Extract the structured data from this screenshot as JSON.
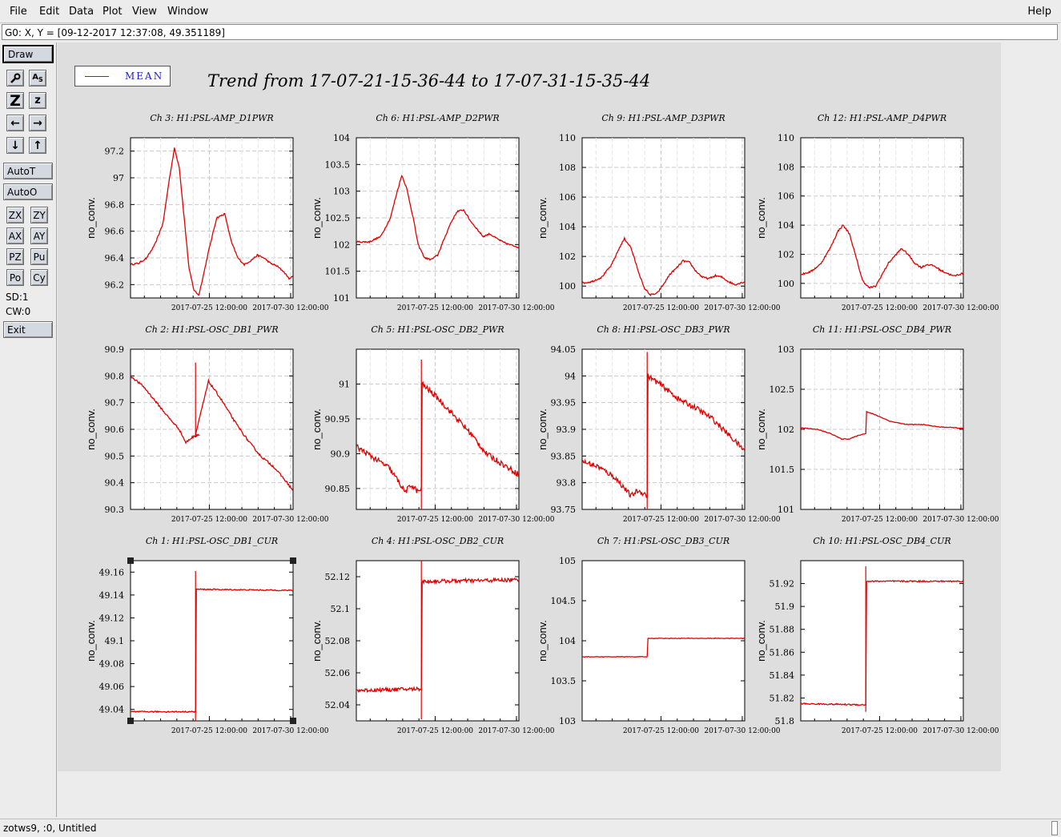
{
  "menubar": {
    "items": [
      "File",
      "Edit",
      "Data",
      "Plot",
      "View",
      "Window"
    ],
    "help": "Help"
  },
  "coord_readout": "G0: X, Y = [09-12-2017 12:37:08, 49.351189]",
  "toolbar": {
    "draw": "Draw",
    "icons": [
      {
        "name": "wrench-icon",
        "glyph": "🔧"
      },
      {
        "name": "text-tool-icon",
        "glyph": "AS"
      },
      {
        "name": "zoom-large-icon",
        "glyph": "Z"
      },
      {
        "name": "zoom-small-icon",
        "glyph": "z"
      },
      {
        "name": "arrow-left-icon",
        "glyph": "←"
      },
      {
        "name": "arrow-right-icon",
        "glyph": "→"
      },
      {
        "name": "arrow-down-icon",
        "glyph": "↓"
      },
      {
        "name": "arrow-up-icon",
        "glyph": "↑"
      }
    ],
    "autot": "AutoT",
    "autoo": "AutoO",
    "pairs": [
      [
        "ZX",
        "ZY"
      ],
      [
        "AX",
        "AY"
      ],
      [
        "PZ",
        "Pu"
      ],
      [
        "Po",
        "Cy"
      ]
    ],
    "sd": "SD:1",
    "cw": "CW:0",
    "exit": "Exit"
  },
  "legend": {
    "label": "MEAN",
    "color": "#e00000"
  },
  "title": "Trend from 17-07-21-15-36-44 to 17-07-31-15-35-44",
  "status": "zotws9, :0, Untitled",
  "chart_data": [
    {
      "type": "line",
      "title": "Ch 3: H1:PSL-AMP_D1PWR",
      "ylabel": "no_conv.",
      "yticks": [
        "96.2",
        "96.4",
        "96.6",
        "96.8",
        "97",
        "97.2"
      ],
      "ytick_values": [
        96.2,
        96.4,
        96.6,
        96.8,
        97,
        97.2
      ],
      "ylim": [
        96.1,
        97.3
      ],
      "xticks": [
        "2017-07-25 12:00:00",
        "2017-07-30 12:00:00"
      ],
      "xlim": [
        0,
        10
      ],
      "xtick_values": [
        4.85,
        9.85
      ],
      "grid": true,
      "series": [
        {
          "x": [
            0,
            0.5,
            1,
            1.5,
            2,
            2.4,
            2.7,
            3.0,
            3.3,
            3.6,
            3.9,
            4.2,
            4.5,
            4.8,
            5.0,
            5.3,
            5.8,
            6.2,
            6.6,
            7.0,
            7.4,
            7.8,
            8.2,
            8.6,
            9.0,
            9.4,
            9.8,
            10
          ],
          "y": [
            96.35,
            96.36,
            96.4,
            96.5,
            96.66,
            97.0,
            97.22,
            97.08,
            96.7,
            96.32,
            96.16,
            96.12,
            96.28,
            96.45,
            96.55,
            96.7,
            96.73,
            96.52,
            96.4,
            96.35,
            96.38,
            96.42,
            96.4,
            96.36,
            96.34,
            96.3,
            96.24,
            96.27
          ],
          "noise": 0.006
        }
      ]
    },
    {
      "type": "line",
      "title": "Ch 6: H1:PSL-AMP_D2PWR",
      "ylabel": "no_conv.",
      "yticks": [
        "101",
        "101.5",
        "102",
        "102.5",
        "103",
        "103.5",
        "104"
      ],
      "ytick_values": [
        101,
        101.5,
        102,
        102.5,
        103,
        103.5,
        104
      ],
      "ylim": [
        101,
        104
      ],
      "xticks": [
        "2017-07-25 12:00:00",
        "2017-07-30 12:00:00"
      ],
      "xlim": [
        0,
        10
      ],
      "xtick_values": [
        4.85,
        9.85
      ],
      "grid": true,
      "series": [
        {
          "x": [
            0,
            0.8,
            1.5,
            2.1,
            2.5,
            2.8,
            3.1,
            3.5,
            3.8,
            4.2,
            4.6,
            5.0,
            5.4,
            5.8,
            6.2,
            6.6,
            7.0,
            7.4,
            7.8,
            8.2,
            8.6,
            9.0,
            9.4,
            10
          ],
          "y": [
            102.05,
            102.05,
            102.15,
            102.5,
            102.98,
            103.3,
            103.05,
            102.5,
            102.0,
            101.75,
            101.72,
            101.8,
            102.1,
            102.4,
            102.62,
            102.65,
            102.45,
            102.3,
            102.15,
            102.2,
            102.12,
            102.05,
            102.0,
            101.95
          ],
          "noise": 0.015
        }
      ]
    },
    {
      "type": "line",
      "title": "Ch 9: H1:PSL-AMP_D3PWR",
      "ylabel": "no_conv.",
      "yticks": [
        "100",
        "102",
        "104",
        "106",
        "108",
        "110"
      ],
      "ytick_values": [
        100,
        102,
        104,
        106,
        108,
        110
      ],
      "ylim": [
        99.2,
        110
      ],
      "xticks": [
        "2017-07-25 12:00:00",
        "2017-07-30 12:00:00"
      ],
      "xlim": [
        0,
        10
      ],
      "xtick_values": [
        4.85,
        9.85
      ],
      "grid": true,
      "series": [
        {
          "x": [
            0,
            0.6,
            1.2,
            1.8,
            2.3,
            2.6,
            3.0,
            3.4,
            3.8,
            4.2,
            4.6,
            5.0,
            5.4,
            5.8,
            6.2,
            6.6,
            7.0,
            7.4,
            7.8,
            8.2,
            8.6,
            9.0,
            9.4,
            10
          ],
          "y": [
            100.2,
            100.3,
            100.6,
            101.4,
            102.6,
            103.2,
            102.6,
            101.2,
            99.9,
            99.4,
            99.5,
            100.1,
            100.8,
            101.2,
            101.7,
            101.6,
            101.0,
            100.6,
            100.5,
            100.7,
            100.6,
            100.3,
            100.1,
            100.3
          ],
          "noise": 0.06
        }
      ]
    },
    {
      "type": "line",
      "title": "Ch 12: H1:PSL-AMP_D4PWR",
      "ylabel": "no_conv.",
      "yticks": [
        "100",
        "102",
        "104",
        "106",
        "108",
        "110"
      ],
      "ytick_values": [
        100,
        102,
        104,
        106,
        108,
        110
      ],
      "ylim": [
        99.0,
        110
      ],
      "xticks": [
        "2017-07-25 12:00:00",
        "2017-07-30 12:00:00"
      ],
      "xlim": [
        0,
        10
      ],
      "xtick_values": [
        4.85,
        9.85
      ],
      "grid": true,
      "series": [
        {
          "x": [
            0,
            0.6,
            1.2,
            1.8,
            2.3,
            2.6,
            3.0,
            3.4,
            3.8,
            4.2,
            4.6,
            5.0,
            5.4,
            5.8,
            6.2,
            6.6,
            7.0,
            7.4,
            7.8,
            8.2,
            8.6,
            9.0,
            9.4,
            10
          ],
          "y": [
            100.6,
            100.8,
            101.3,
            102.4,
            103.6,
            104.0,
            103.4,
            101.8,
            100.2,
            99.7,
            99.8,
            100.6,
            101.4,
            101.9,
            102.4,
            102.0,
            101.4,
            101.1,
            101.3,
            101.2,
            100.9,
            100.7,
            100.5,
            100.7
          ],
          "noise": 0.06
        }
      ]
    },
    {
      "type": "line",
      "title": "Ch 2: H1:PSL-OSC_DB1_PWR",
      "ylabel": "no_conv.",
      "yticks": [
        "90.3",
        "90.4",
        "90.5",
        "90.6",
        "90.7",
        "90.8",
        "90.9"
      ],
      "ytick_values": [
        90.3,
        90.4,
        90.5,
        90.6,
        90.7,
        90.8,
        90.9
      ],
      "ylim": [
        90.3,
        90.9
      ],
      "xticks": [
        "2017-07-25 12:00:00",
        "2017-07-30 12:00:00"
      ],
      "xlim": [
        0,
        10
      ],
      "xtick_values": [
        4.85,
        9.85
      ],
      "grid": true,
      "series": [
        {
          "x": [
            0,
            0.8,
            1.6,
            2.4,
            3.0,
            3.4,
            3.8,
            4.2,
            4.0,
            4.0,
            4.0,
            4.8,
            5.6,
            6.4,
            7.2,
            8.0,
            8.8,
            9.5,
            10
          ],
          "y": [
            90.8,
            90.76,
            90.7,
            90.64,
            90.6,
            90.55,
            90.57,
            90.58,
            90.58,
            90.58,
            90.58,
            90.78,
            90.71,
            90.63,
            90.56,
            90.5,
            90.46,
            90.41,
            90.37
          ],
          "noise": 0.004,
          "jump": {
            "at": 4.0,
            "from": 90.57,
            "to": 90.85
          }
        }
      ]
    },
    {
      "type": "line",
      "title": "Ch 5: H1:PSL-OSC_DB2_PWR",
      "ylabel": "no_conv.",
      "yticks": [
        "90.85",
        "90.9",
        "90.95",
        "91"
      ],
      "ytick_values": [
        90.85,
        90.9,
        90.95,
        91
      ],
      "ylim": [
        90.82,
        91.05
      ],
      "xticks": [
        "2017-07-25 12:00:00",
        "2017-07-30 12:00:00"
      ],
      "xlim": [
        0,
        10
      ],
      "xtick_values": [
        4.85,
        9.85
      ],
      "grid": true,
      "series": [
        {
          "x": [
            0,
            1,
            2,
            2.6,
            3.0,
            3.4,
            3.8,
            4.0,
            4.05,
            5.0,
            6.0,
            7.0,
            8.0,
            9.0,
            10
          ],
          "y": [
            90.91,
            90.895,
            90.88,
            90.86,
            90.845,
            90.855,
            90.845,
            90.85,
            91.0,
            90.98,
            90.955,
            90.93,
            90.9,
            90.885,
            90.87
          ],
          "noise": 0.004,
          "jump": {
            "at": 4.0,
            "from": 90.82,
            "to": 91.035
          }
        }
      ]
    },
    {
      "type": "line",
      "title": "Ch 8: H1:PSL-OSC_DB3_PWR",
      "ylabel": "no_conv.",
      "yticks": [
        "93.75",
        "93.8",
        "93.85",
        "93.9",
        "93.95",
        "94",
        "94.05"
      ],
      "ytick_values": [
        93.75,
        93.8,
        93.85,
        93.9,
        93.95,
        94,
        94.05
      ],
      "ylim": [
        93.75,
        94.05
      ],
      "xticks": [
        "2017-07-25 12:00:00",
        "2017-07-30 12:00:00"
      ],
      "xlim": [
        0,
        10
      ],
      "xtick_values": [
        4.85,
        9.85
      ],
      "grid": true,
      "series": [
        {
          "x": [
            0,
            1,
            2,
            2.6,
            3.0,
            3.4,
            3.8,
            4.0,
            4.05,
            5.0,
            6.0,
            7.0,
            8.0,
            9.0,
            10
          ],
          "y": [
            93.84,
            93.83,
            93.81,
            93.79,
            93.775,
            93.785,
            93.78,
            93.775,
            94.0,
            93.98,
            93.955,
            93.94,
            93.92,
            93.89,
            93.86
          ],
          "noise": 0.005,
          "jump": {
            "at": 4.0,
            "from": 93.75,
            "to": 94.045
          }
        }
      ]
    },
    {
      "type": "line",
      "title": "Ch 11: H1:PSL-OSC_DB4_PWR",
      "ylabel": "no_conv.",
      "yticks": [
        "101",
        "101.5",
        "102",
        "102.5",
        "103"
      ],
      "ytick_values": [
        101,
        101.5,
        102,
        102.5,
        103
      ],
      "ylim": [
        101,
        103
      ],
      "xticks": [
        "2017-07-25 12:00:00",
        "2017-07-30 12:00:00"
      ],
      "xlim": [
        0,
        10
      ],
      "xtick_values": [
        4.85,
        9.85
      ],
      "grid": true,
      "series": [
        {
          "x": [
            0,
            1,
            1.8,
            2.5,
            3.0,
            3.5,
            4.0,
            4.05,
            4.6,
            5.5,
            6.5,
            7.5,
            8.5,
            9.5,
            10
          ],
          "y": [
            102.02,
            102.0,
            101.95,
            101.88,
            101.88,
            101.92,
            101.95,
            102.22,
            102.18,
            102.1,
            102.06,
            102.06,
            102.03,
            102.02,
            102.01
          ],
          "noise": 0.004
        }
      ]
    },
    {
      "type": "line",
      "title": "Ch 1: H1:PSL-OSC_DB1_CUR",
      "ylabel": "no_conv.",
      "yticks": [
        "49.04",
        "49.06",
        "49.08",
        "49.1",
        "49.12",
        "49.14",
        "49.16"
      ],
      "ytick_values": [
        49.04,
        49.06,
        49.08,
        49.1,
        49.12,
        49.14,
        49.16
      ],
      "ylim": [
        49.03,
        49.17
      ],
      "xticks": [
        "2017-07-25 12:00:00",
        "2017-07-30 12:00:00"
      ],
      "xlim": [
        0,
        10
      ],
      "xtick_values": [
        4.85,
        9.85
      ],
      "grid": false,
      "selected": true,
      "series": [
        {
          "x": [
            0,
            4.0,
            4.05,
            10
          ],
          "y": [
            49.038,
            49.038,
            49.145,
            49.144
          ],
          "noise": 0.0005,
          "jump": {
            "at": 4.0,
            "from": 49.03,
            "to": 49.161
          }
        }
      ]
    },
    {
      "type": "line",
      "title": "Ch 4: H1:PSL-OSC_DB2_CUR",
      "ylabel": "no_conv.",
      "yticks": [
        "52.04",
        "52.06",
        "52.08",
        "52.1",
        "52.12"
      ],
      "ytick_values": [
        52.04,
        52.06,
        52.08,
        52.1,
        52.12
      ],
      "ylim": [
        52.03,
        52.13
      ],
      "xticks": [
        "2017-07-25 12:00:00",
        "2017-07-30 12:00:00"
      ],
      "xlim": [
        0,
        10
      ],
      "xtick_values": [
        4.85,
        9.85
      ],
      "grid": false,
      "series": [
        {
          "x": [
            0,
            4.0,
            4.05,
            10
          ],
          "y": [
            52.049,
            52.05,
            52.117,
            52.118
          ],
          "noise": 0.0012,
          "jump": {
            "at": 4.0,
            "from": 52.031,
            "to": 52.13
          }
        }
      ]
    },
    {
      "type": "line",
      "title": "Ch 7: H1:PSL-OSC_DB3_CUR",
      "ylabel": "no_conv.",
      "yticks": [
        "103",
        "103.5",
        "104",
        "104.5",
        "105"
      ],
      "ytick_values": [
        103,
        103.5,
        104,
        104.5,
        105
      ],
      "ylim": [
        103,
        105
      ],
      "xticks": [
        "2017-07-25 12:00:00",
        "2017-07-30 12:00:00"
      ],
      "xlim": [
        0,
        10
      ],
      "xtick_values": [
        4.85,
        9.85
      ],
      "grid": false,
      "series": [
        {
          "x": [
            0,
            4.0,
            4.05,
            10
          ],
          "y": [
            103.8,
            103.8,
            104.03,
            104.03
          ],
          "noise": 0.003
        }
      ]
    },
    {
      "type": "line",
      "title": "Ch 10: H1:PSL-OSC_DB4_CUR",
      "ylabel": "no_conv.",
      "yticks": [
        "51.8",
        "51.82",
        "51.84",
        "51.86",
        "51.88",
        "51.9",
        "51.92"
      ],
      "ytick_values": [
        51.8,
        51.82,
        51.84,
        51.86,
        51.88,
        51.9,
        51.92
      ],
      "ylim": [
        51.8,
        51.94
      ],
      "xticks": [
        "2017-07-25 12:00:00",
        "2017-07-30 12:00:00"
      ],
      "xlim": [
        0,
        10
      ],
      "xtick_values": [
        4.85,
        9.85
      ],
      "grid": false,
      "series": [
        {
          "x": [
            0,
            4.0,
            4.05,
            10
          ],
          "y": [
            51.815,
            51.814,
            51.922,
            51.922
          ],
          "noise": 0.0006,
          "jump": {
            "at": 4.0,
            "from": 51.808,
            "to": 51.935
          }
        }
      ]
    }
  ]
}
